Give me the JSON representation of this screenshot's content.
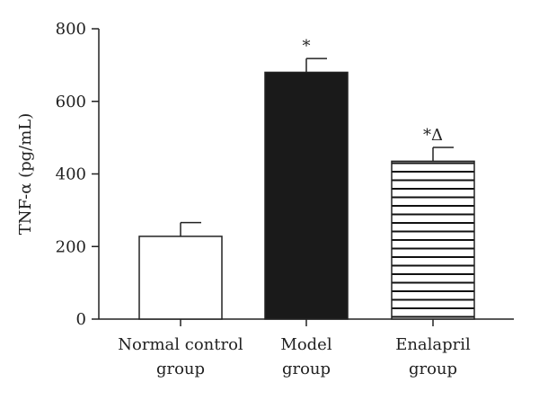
{
  "chart_data": {
    "type": "bar",
    "categories": [
      [
        "Normal control",
        "group"
      ],
      [
        "Model",
        "group"
      ],
      [
        "Enalapril",
        "group"
      ]
    ],
    "values": [
      228,
      680,
      435
    ],
    "errors": [
      38,
      38,
      38
    ],
    "annotations": [
      "",
      "*",
      "*Δ"
    ],
    "fills": [
      "white",
      "black",
      "horizontal-stripes"
    ],
    "ylabel": "TNF-α (pg/mL)",
    "ylim": [
      0,
      800
    ],
    "yticks": [
      0,
      200,
      400,
      600,
      800
    ],
    "grid": false
  }
}
